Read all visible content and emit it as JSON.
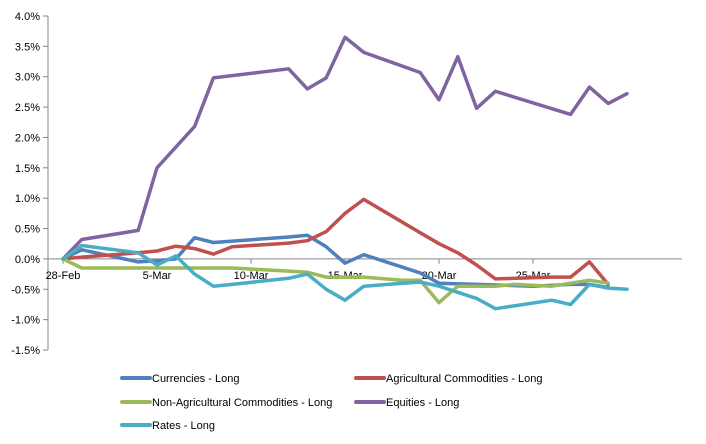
{
  "chart_data": {
    "type": "line",
    "title": "",
    "xlabel": "",
    "ylabel": "",
    "ylim": [
      -0.015,
      0.04
    ],
    "y_tick_values": [
      0.04,
      0.035,
      0.03,
      0.025,
      0.02,
      0.015,
      0.01,
      0.005,
      0.0,
      -0.005,
      -0.01,
      -0.015
    ],
    "y_tick_labels": [
      "4.0%",
      "3.5%",
      "3.0%",
      "2.5%",
      "2.0%",
      "1.5%",
      "1.0%",
      "0.5%",
      "0.0%",
      "-0.5%",
      "-1.0%",
      "-1.5%"
    ],
    "x_tick_labels": [
      {
        "label": "28-Feb",
        "index": 0
      },
      {
        "label": "5-Mar",
        "index": 5
      },
      {
        "label": "10-Mar",
        "index": 10
      },
      {
        "label": "15-Mar",
        "index": 15
      },
      {
        "label": "20-Mar",
        "index": 20
      },
      {
        "label": "25-Mar",
        "index": 25
      }
    ],
    "x_count": 30,
    "grid": false,
    "legend_position": "bottom",
    "series": [
      {
        "name": "Currencies - Long",
        "color": "#4f81bd",
        "points": [
          [
            0,
            0.0
          ],
          [
            1,
            0.0015
          ],
          [
            4,
            -0.0005
          ],
          [
            5,
            -0.0003
          ],
          [
            6,
            0.0
          ],
          [
            7,
            0.0035
          ],
          [
            8,
            0.0027
          ],
          [
            12,
            0.0036
          ],
          [
            13,
            0.0039
          ],
          [
            14,
            0.002
          ],
          [
            15,
            -0.0007
          ],
          [
            16,
            0.0007
          ],
          [
            19,
            -0.0023
          ],
          [
            20,
            -0.004
          ],
          [
            22,
            -0.0042
          ],
          [
            25,
            -0.0045
          ],
          [
            27,
            -0.0042
          ],
          [
            28,
            -0.0042
          ],
          [
            29,
            -0.0047
          ]
        ]
      },
      {
        "name": "Agricultural Commodities - Long",
        "color": "#c0504d",
        "points": [
          [
            0,
            0.0
          ],
          [
            1,
            0.0003
          ],
          [
            4,
            0.001
          ],
          [
            5,
            0.0013
          ],
          [
            6,
            0.0021
          ],
          [
            7,
            0.0017
          ],
          [
            8,
            0.0008
          ],
          [
            9,
            0.002
          ],
          [
            12,
            0.0026
          ],
          [
            13,
            0.003
          ],
          [
            14,
            0.0045
          ],
          [
            15,
            0.0075
          ],
          [
            16,
            0.0098
          ],
          [
            19,
            0.0043
          ],
          [
            20,
            0.0025
          ],
          [
            21,
            0.001
          ],
          [
            22,
            -0.001
          ],
          [
            23,
            -0.0033
          ],
          [
            26,
            -0.003
          ],
          [
            27,
            -0.003
          ],
          [
            28,
            -0.0005
          ],
          [
            29,
            -0.0042
          ]
        ]
      },
      {
        "name": "Non-Agricultural Commodities - Long",
        "color": "#9bbb59",
        "points": [
          [
            0,
            0.0
          ],
          [
            1,
            -0.0015
          ],
          [
            4,
            -0.0015
          ],
          [
            5,
            -0.0015
          ],
          [
            9,
            -0.0015
          ],
          [
            12,
            -0.002
          ],
          [
            13,
            -0.0022
          ],
          [
            14,
            -0.003
          ],
          [
            15,
            -0.003
          ],
          [
            16,
            -0.003
          ],
          [
            18,
            -0.0035
          ],
          [
            19,
            -0.0035
          ],
          [
            20,
            -0.0072
          ],
          [
            21,
            -0.0045
          ],
          [
            22,
            -0.0045
          ],
          [
            23,
            -0.0045
          ],
          [
            24,
            -0.0042
          ],
          [
            26,
            -0.0045
          ],
          [
            28,
            -0.0035
          ],
          [
            29,
            -0.004
          ]
        ]
      },
      {
        "name": "Equities - Long",
        "color": "#8064a2",
        "points": [
          [
            0,
            0.0
          ],
          [
            1,
            0.0032
          ],
          [
            4,
            0.0047
          ],
          [
            5,
            0.015
          ],
          [
            7,
            0.0218
          ],
          [
            8,
            0.0298
          ],
          [
            12,
            0.0313
          ],
          [
            13,
            0.028
          ],
          [
            14,
            0.0298
          ],
          [
            15,
            0.0365
          ],
          [
            16,
            0.034
          ],
          [
            19,
            0.0307
          ],
          [
            20,
            0.0262
          ],
          [
            21,
            0.0333
          ],
          [
            22,
            0.0248
          ],
          [
            23,
            0.0276
          ],
          [
            27,
            0.0238
          ],
          [
            28,
            0.0283
          ],
          [
            29,
            0.0256
          ],
          [
            30,
            0.0272
          ]
        ]
      },
      {
        "name": "Rates - Long",
        "color": "#4bacc6",
        "points": [
          [
            0,
            0.0
          ],
          [
            1,
            0.0022
          ],
          [
            4,
            0.001
          ],
          [
            5,
            -0.001
          ],
          [
            6,
            0.0005
          ],
          [
            7,
            -0.0025
          ],
          [
            8,
            -0.0045
          ],
          [
            9,
            -0.0042
          ],
          [
            12,
            -0.0032
          ],
          [
            13,
            -0.0025
          ],
          [
            14,
            -0.005
          ],
          [
            15,
            -0.0068
          ],
          [
            16,
            -0.0045
          ],
          [
            19,
            -0.0038
          ],
          [
            20,
            -0.0045
          ],
          [
            21,
            -0.0055
          ],
          [
            22,
            -0.0065
          ],
          [
            23,
            -0.0082
          ],
          [
            26,
            -0.0068
          ],
          [
            27,
            -0.0075
          ],
          [
            28,
            -0.0042
          ],
          [
            29,
            -0.0048
          ],
          [
            30,
            -0.005
          ]
        ]
      }
    ]
  }
}
